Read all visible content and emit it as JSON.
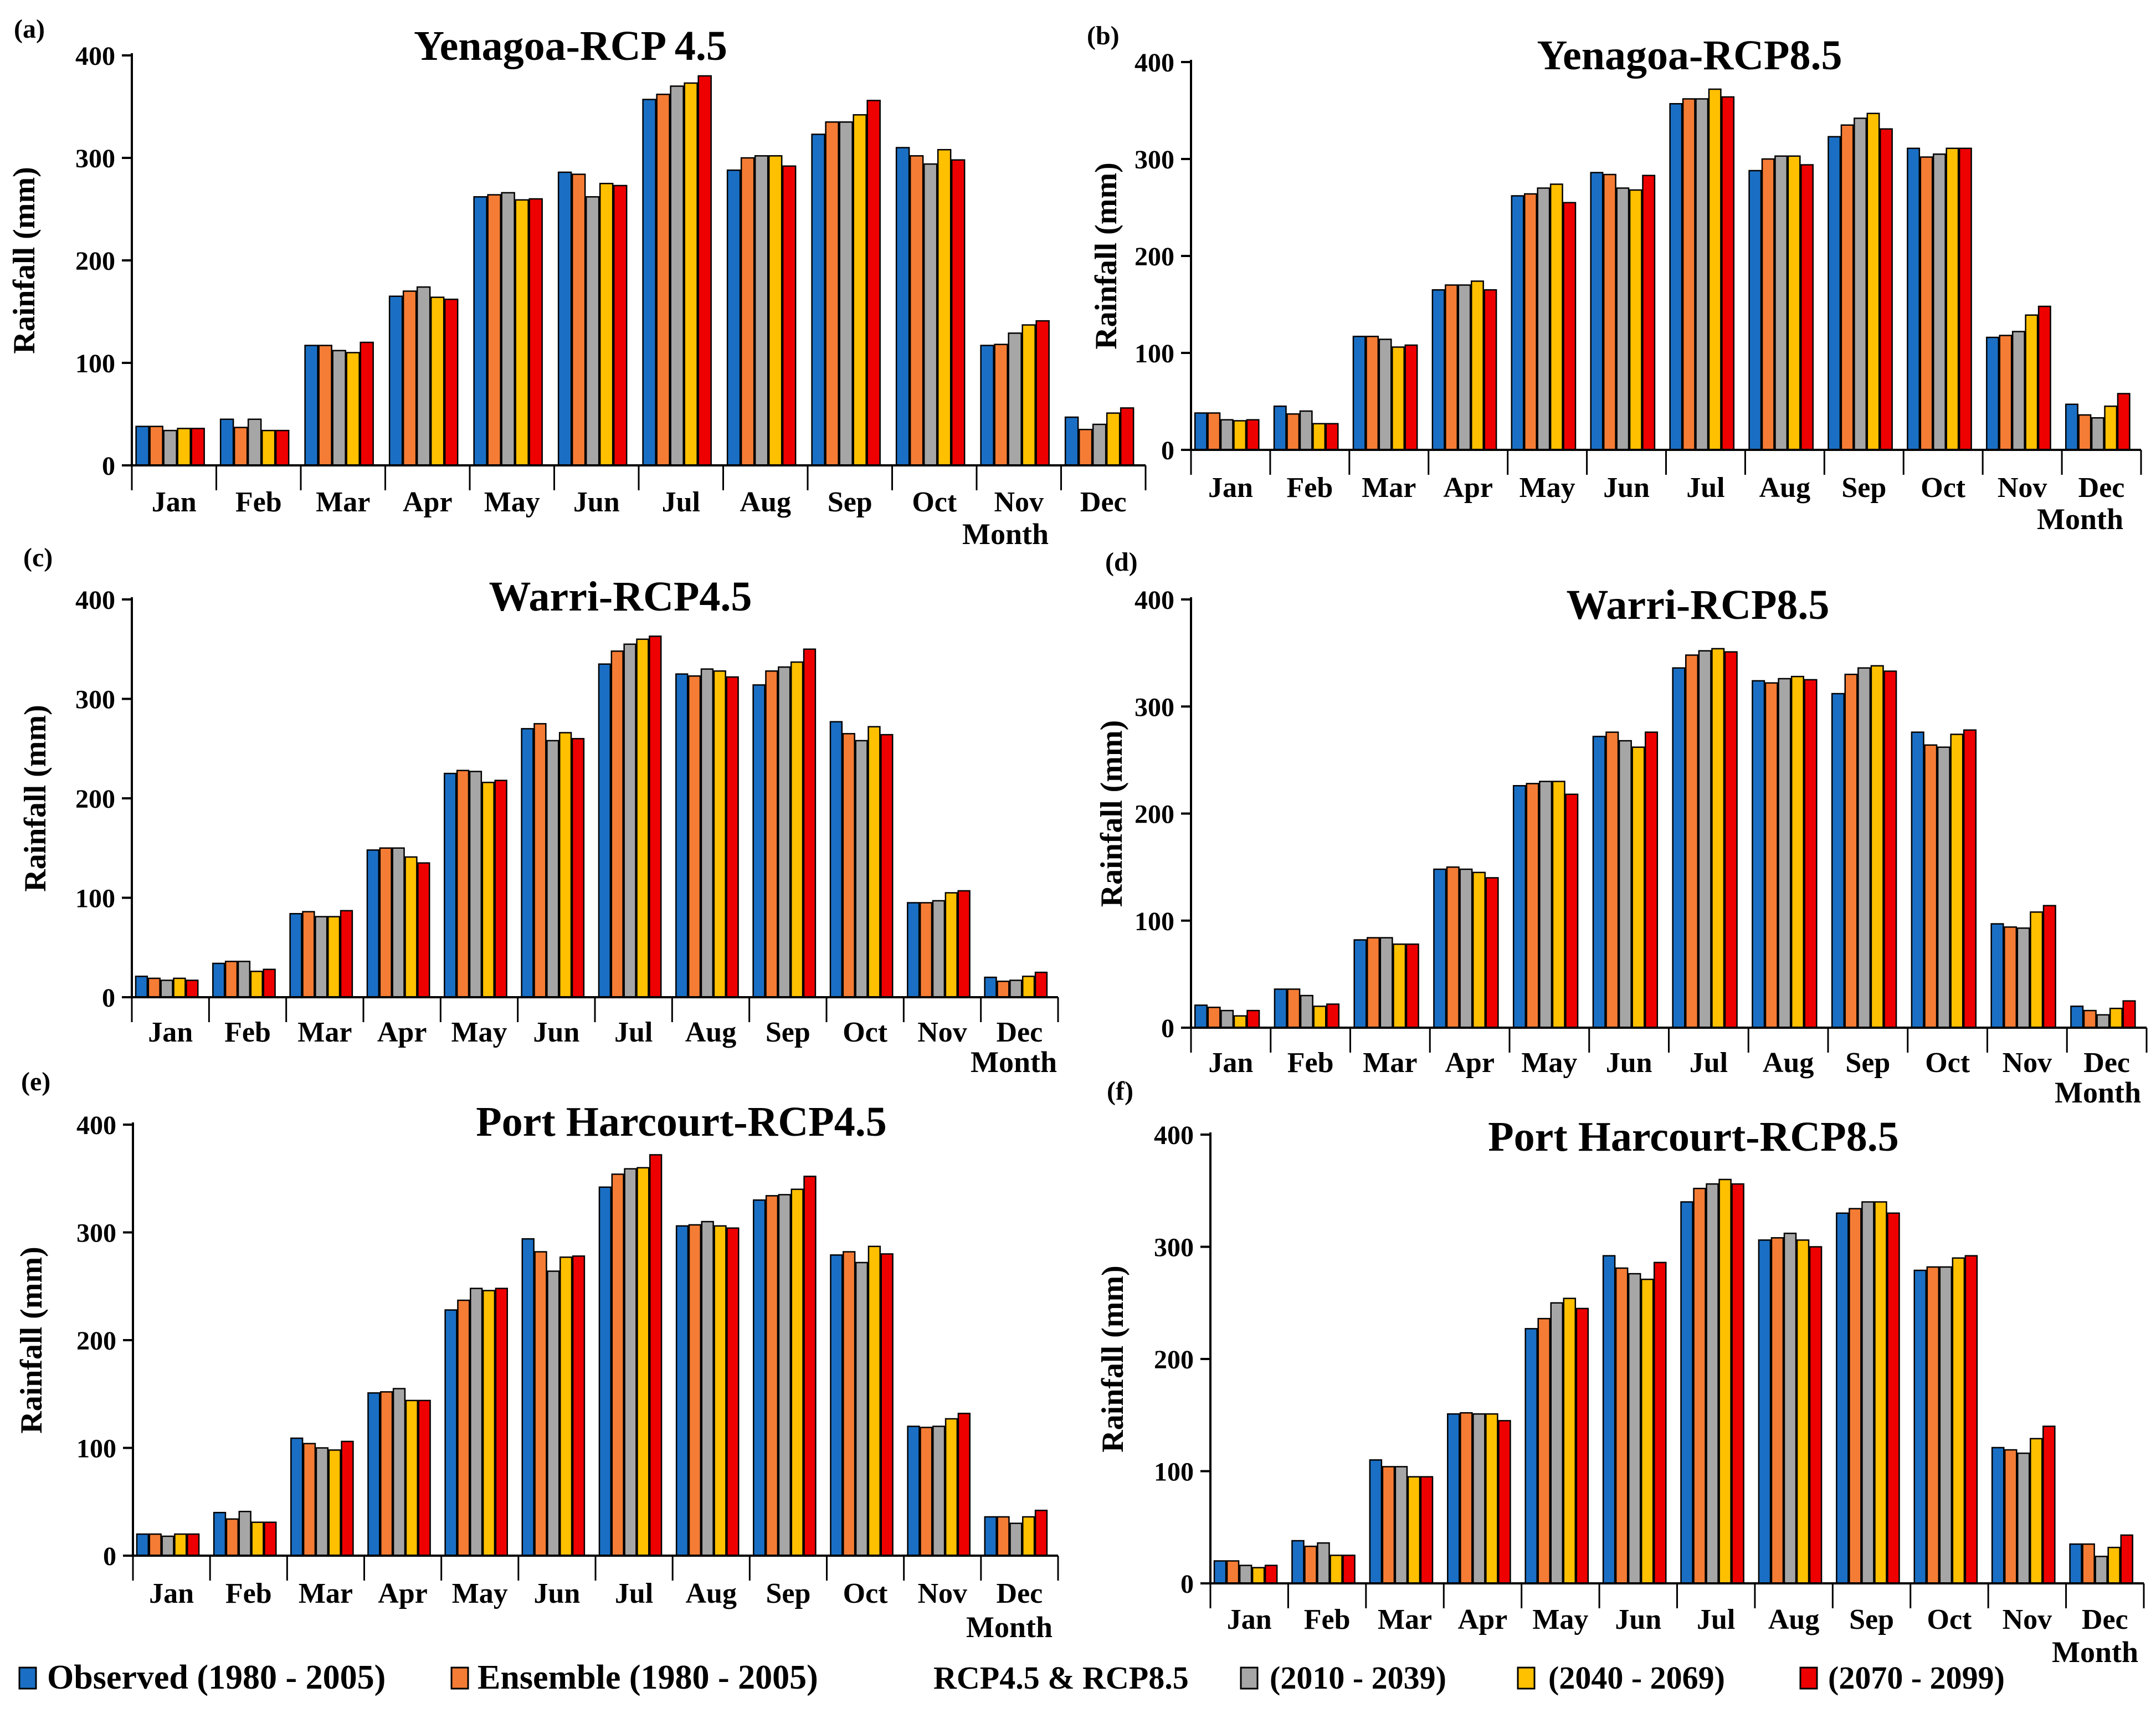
{
  "series_colors": [
    "#1a6fc4",
    "#f57c34",
    "#a6a6a6",
    "#ffc000",
    "#ee0000"
  ],
  "legend": {
    "observed": "Observed (1980 - 2005)",
    "ensemble": "Ensemble (1980 - 2005)",
    "scenario_label": "RCP4.5 & RCP8.5",
    "p1": "(2010 - 2039)",
    "p2": "(2040 - 2069)",
    "p3": "(2070 - 2099)"
  },
  "chart_data": [
    {
      "panel": "(a)",
      "type": "bar",
      "title": "Yenagoa-RCP 4.5",
      "xlabel": "Month",
      "ylabel": "Rainfall (mm)",
      "ylim": [
        0,
        400
      ],
      "yticks": [
        0,
        100,
        200,
        300,
        400
      ],
      "categories": [
        "Jan",
        "Feb",
        "Mar",
        "Apr",
        "May",
        "Jun",
        "Jul",
        "Aug",
        "Sep",
        "Oct",
        "Nov",
        "Dec"
      ],
      "series": [
        {
          "name": "Observed (1980 - 2005)",
          "values": [
            38,
            45,
            117,
            165,
            262,
            286,
            357,
            288,
            323,
            310,
            117,
            47
          ]
        },
        {
          "name": "Ensemble (1980 - 2005)",
          "values": [
            38,
            37,
            117,
            170,
            264,
            284,
            362,
            300,
            335,
            302,
            118,
            35
          ]
        },
        {
          "name": "(2010 - 2039)",
          "values": [
            34,
            45,
            112,
            174,
            266,
            262,
            370,
            302,
            335,
            294,
            129,
            40
          ]
        },
        {
          "name": "(2040 - 2069)",
          "values": [
            36,
            34,
            110,
            164,
            259,
            275,
            373,
            302,
            342,
            308,
            137,
            51
          ]
        },
        {
          "name": "(2070 - 2099)",
          "values": [
            36,
            34,
            120,
            162,
            260,
            273,
            380,
            292,
            356,
            298,
            141,
            56
          ]
        }
      ]
    },
    {
      "panel": "(b)",
      "type": "bar",
      "title": "Yenagoa-RCP8.5",
      "xlabel": "Month",
      "ylabel": "Rainfall (mm)",
      "ylim": [
        0,
        400
      ],
      "yticks": [
        0,
        100,
        200,
        300,
        400
      ],
      "categories": [
        "Jan",
        "Feb",
        "Mar",
        "Apr",
        "May",
        "Jun",
        "Jul",
        "Aug",
        "Sep",
        "Oct",
        "Nov",
        "Dec"
      ],
      "series": [
        {
          "name": "Observed (1980 - 2005)",
          "values": [
            38,
            45,
            117,
            165,
            262,
            286,
            357,
            288,
            323,
            311,
            116,
            47
          ]
        },
        {
          "name": "Ensemble (1980 - 2005)",
          "values": [
            38,
            37,
            117,
            170,
            264,
            284,
            362,
            300,
            335,
            302,
            118,
            36
          ]
        },
        {
          "name": "(2010 - 2039)",
          "values": [
            31,
            40,
            114,
            170,
            270,
            270,
            362,
            303,
            342,
            305,
            122,
            33
          ]
        },
        {
          "name": "(2040 - 2069)",
          "values": [
            30,
            27,
            106,
            174,
            274,
            268,
            372,
            303,
            347,
            311,
            139,
            45
          ]
        },
        {
          "name": "(2070 - 2099)",
          "values": [
            31,
            27,
            108,
            165,
            255,
            283,
            364,
            294,
            331,
            311,
            148,
            58
          ]
        }
      ]
    },
    {
      "panel": "(c)",
      "type": "bar",
      "title": "Warri-RCP4.5",
      "xlabel": "Month",
      "ylabel": "Rainfall (mm)",
      "ylim": [
        0,
        400
      ],
      "yticks": [
        0,
        100,
        200,
        300,
        400
      ],
      "categories": [
        "Jan",
        "Feb",
        "Mar",
        "Apr",
        "May",
        "Jun",
        "Jul",
        "Aug",
        "Sep",
        "Oct",
        "Nov",
        "Dec"
      ],
      "series": [
        {
          "name": "Observed (1980 - 2005)",
          "values": [
            21,
            34,
            84,
            148,
            225,
            270,
            335,
            325,
            314,
            277,
            95,
            20
          ]
        },
        {
          "name": "Ensemble (1980 - 2005)",
          "values": [
            19,
            36,
            86,
            150,
            228,
            275,
            348,
            323,
            328,
            265,
            95,
            16
          ]
        },
        {
          "name": "(2010 - 2039)",
          "values": [
            17,
            36,
            81,
            150,
            227,
            258,
            355,
            330,
            332,
            258,
            97,
            17
          ]
        },
        {
          "name": "(2040 - 2069)",
          "values": [
            19,
            26,
            81,
            141,
            216,
            266,
            360,
            328,
            337,
            272,
            105,
            21
          ]
        },
        {
          "name": "(2070 - 2099)",
          "values": [
            17,
            28,
            87,
            135,
            218,
            260,
            363,
            322,
            350,
            264,
            107,
            25
          ]
        }
      ]
    },
    {
      "panel": "(d)",
      "type": "bar",
      "title": "Warri-RCP8.5",
      "xlabel": "Month",
      "ylabel": "Rainfall (mm)",
      "ylim": [
        0,
        400
      ],
      "yticks": [
        0,
        100,
        200,
        300,
        400
      ],
      "categories": [
        "Jan",
        "Feb",
        "Mar",
        "Apr",
        "May",
        "Jun",
        "Jul",
        "Aug",
        "Sep",
        "Oct",
        "Nov",
        "Dec"
      ],
      "series": [
        {
          "name": "Observed (1980 - 2005)",
          "values": [
            21,
            36,
            82,
            148,
            226,
            272,
            336,
            324,
            312,
            276,
            97,
            20
          ]
        },
        {
          "name": "Ensemble (1980 - 2005)",
          "values": [
            19,
            36,
            84,
            150,
            228,
            276,
            348,
            322,
            330,
            264,
            94,
            16
          ]
        },
        {
          "name": "(2010 - 2039)",
          "values": [
            16,
            30,
            84,
            148,
            230,
            268,
            352,
            326,
            336,
            262,
            93,
            12
          ]
        },
        {
          "name": "(2040 - 2069)",
          "values": [
            11,
            20,
            78,
            145,
            230,
            262,
            354,
            328,
            338,
            274,
            108,
            18
          ]
        },
        {
          "name": "(2070 - 2099)",
          "values": [
            16,
            22,
            78,
            140,
            218,
            276,
            351,
            325,
            333,
            278,
            114,
            25
          ]
        }
      ]
    },
    {
      "panel": "(e)",
      "type": "bar",
      "title": "Port Harcourt-RCP4.5",
      "xlabel": "Month",
      "ylabel": "Rainfall (mm)",
      "ylim": [
        0,
        400
      ],
      "yticks": [
        0,
        100,
        200,
        300,
        400
      ],
      "categories": [
        "Jan",
        "Feb",
        "Mar",
        "Apr",
        "May",
        "Jun",
        "Jul",
        "Aug",
        "Sep",
        "Oct",
        "Nov",
        "Dec"
      ],
      "series": [
        {
          "name": "Observed (1980 - 2005)",
          "values": [
            20,
            40,
            109,
            151,
            228,
            294,
            342,
            306,
            330,
            279,
            120,
            36
          ]
        },
        {
          "name": "Ensemble (1980 - 2005)",
          "values": [
            20,
            34,
            104,
            152,
            237,
            282,
            354,
            307,
            334,
            282,
            119,
            36
          ]
        },
        {
          "name": "(2010 - 2039)",
          "values": [
            18,
            41,
            100,
            155,
            248,
            264,
            359,
            310,
            335,
            272,
            120,
            30
          ]
        },
        {
          "name": "(2040 - 2069)",
          "values": [
            20,
            31,
            98,
            144,
            246,
            277,
            360,
            306,
            340,
            287,
            127,
            36
          ]
        },
        {
          "name": "(2070 - 2099)",
          "values": [
            20,
            31,
            106,
            144,
            248,
            278,
            372,
            304,
            352,
            280,
            132,
            42
          ]
        }
      ]
    },
    {
      "panel": "(f)",
      "type": "bar",
      "title": "Port Harcourt-RCP8.5",
      "xlabel": "Month",
      "ylabel": "Rainfall (mm)",
      "ylim": [
        0,
        400
      ],
      "yticks": [
        0,
        100,
        200,
        300,
        400
      ],
      "categories": [
        "Jan",
        "Feb",
        "Mar",
        "Apr",
        "May",
        "Jun",
        "Jul",
        "Aug",
        "Sep",
        "Oct",
        "Nov",
        "Dec"
      ],
      "series": [
        {
          "name": "Observed (1980 - 2005)",
          "values": [
            20,
            38,
            110,
            151,
            227,
            292,
            340,
            306,
            330,
            279,
            121,
            35
          ]
        },
        {
          "name": "Ensemble (1980 - 2005)",
          "values": [
            20,
            33,
            104,
            152,
            236,
            281,
            352,
            308,
            334,
            282,
            119,
            35
          ]
        },
        {
          "name": "(2010 - 2039)",
          "values": [
            16,
            36,
            104,
            151,
            250,
            276,
            356,
            312,
            340,
            282,
            116,
            24
          ]
        },
        {
          "name": "(2040 - 2069)",
          "values": [
            14,
            25,
            95,
            151,
            254,
            271,
            360,
            306,
            340,
            290,
            129,
            32
          ]
        },
        {
          "name": "(2070 - 2099)",
          "values": [
            16,
            25,
            95,
            145,
            245,
            286,
            356,
            300,
            330,
            292,
            140,
            43
          ]
        }
      ]
    }
  ]
}
